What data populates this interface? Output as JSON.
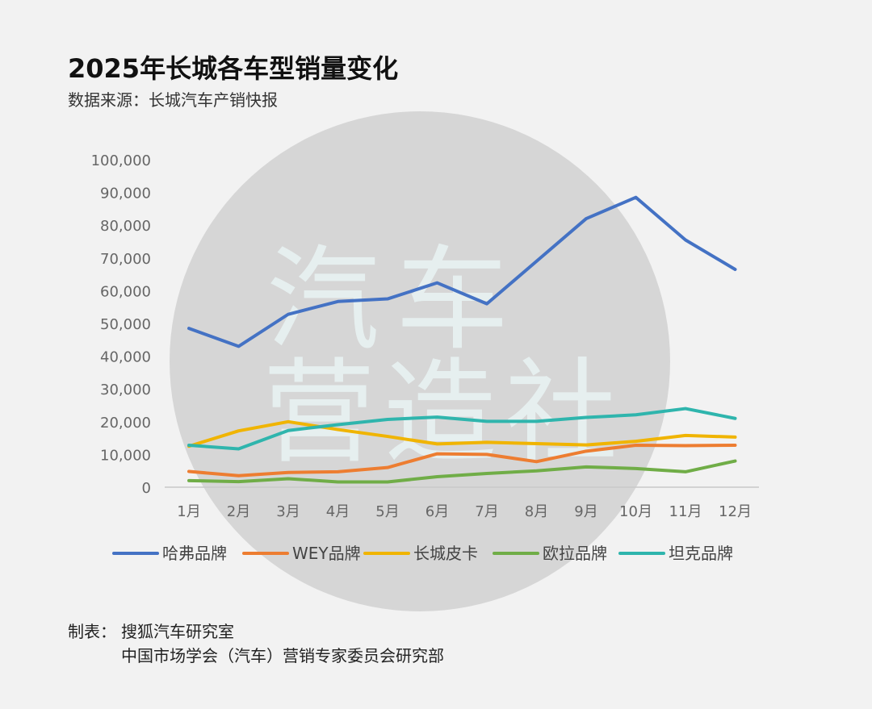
{
  "header": {
    "title": "2025年长城各车型销量变化",
    "subtitle": "数据来源：长城汽车产销快报"
  },
  "watermark": {
    "line1": "汽车",
    "line2": "营造社"
  },
  "footer": {
    "label": "制表：",
    "line1": "搜狐汽车研究室",
    "line2": "中国市场学会（汽车）营销专家委员会研究部"
  },
  "chart_data": {
    "type": "line",
    "categories": [
      "1月",
      "2月",
      "3月",
      "4月",
      "5月",
      "6月",
      "7月",
      "8月",
      "9月",
      "10月",
      "11月",
      "12月"
    ],
    "ylim": [
      0,
      100000
    ],
    "yticks": [
      0,
      10000,
      20000,
      30000,
      40000,
      50000,
      60000,
      70000,
      80000,
      90000,
      100000
    ],
    "ytick_labels": [
      "0",
      "10,000",
      "20,000",
      "30,000",
      "40,000",
      "50,000",
      "60,000",
      "70,000",
      "80,000",
      "90,000",
      "100,000"
    ],
    "grid": false,
    "legend_position": "bottom",
    "series": [
      {
        "name": "哈弗品牌",
        "color": "#4472c4",
        "values": [
          48500,
          43000,
          52800,
          56700,
          57500,
          62400,
          56000,
          69000,
          82000,
          88500,
          75500,
          66500
        ]
      },
      {
        "name": "WEY品牌",
        "color": "#ed7d31",
        "values": [
          4800,
          3500,
          4500,
          4700,
          6000,
          10200,
          10000,
          7800,
          11000,
          12800,
          12700,
          12800
        ]
      },
      {
        "name": "长城皮卡",
        "color": "#f0b400",
        "values": [
          12500,
          17200,
          20000,
          17600,
          15500,
          13200,
          13700,
          13300,
          12900,
          14000,
          15800,
          15300
        ]
      },
      {
        "name": "欧拉品牌",
        "color": "#70ad47",
        "values": [
          2000,
          1700,
          2600,
          1600,
          1600,
          3200,
          4200,
          5000,
          6200,
          5700,
          4700,
          8000
        ]
      },
      {
        "name": "坦克品牌",
        "color": "#2fb5ad",
        "values": [
          12800,
          11700,
          17300,
          19100,
          20700,
          21400,
          20100,
          20100,
          21300,
          22100,
          24000,
          21000
        ]
      }
    ]
  }
}
